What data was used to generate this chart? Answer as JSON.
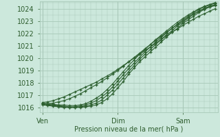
{
  "bg_color": "#cce8dc",
  "grid_color": "#a8c8b8",
  "line_color": "#2d6030",
  "marker_color": "#2d6030",
  "xlabel": "Pression niveau de la mer( hPa )",
  "xlabel_color": "#2d5c2d",
  "tick_color": "#2d5c2d",
  "ylim": [
    1015.6,
    1024.6
  ],
  "yticks": [
    1016,
    1017,
    1018,
    1019,
    1020,
    1021,
    1022,
    1023,
    1024
  ],
  "xtick_labels": [
    "Ven",
    "Dim",
    "Sam"
  ],
  "xtick_positions": [
    0,
    14,
    26
  ],
  "total_points": 33,
  "series": [
    [
      1016.2,
      1016.15,
      1016.1,
      1016.05,
      1016.0,
      1016.0,
      1016.0,
      1016.0,
      1016.05,
      1016.1,
      1016.2,
      1016.4,
      1016.7,
      1017.1,
      1017.6,
      1018.1,
      1018.7,
      1019.2,
      1019.7,
      1020.1,
      1020.5,
      1020.9,
      1021.3,
      1021.7,
      1022.1,
      1022.4,
      1022.8,
      1023.1,
      1023.4,
      1023.7,
      1023.95,
      1024.15,
      1024.3
    ],
    [
      1016.25,
      1016.2,
      1016.15,
      1016.1,
      1016.05,
      1016.0,
      1016.0,
      1016.05,
      1016.1,
      1016.2,
      1016.35,
      1016.6,
      1017.0,
      1017.4,
      1017.9,
      1018.4,
      1018.9,
      1019.4,
      1019.9,
      1020.3,
      1020.7,
      1021.1,
      1021.5,
      1021.9,
      1022.2,
      1022.6,
      1022.9,
      1023.25,
      1023.55,
      1023.8,
      1024.05,
      1024.2,
      1024.35
    ],
    [
      1016.3,
      1016.25,
      1016.2,
      1016.15,
      1016.1,
      1016.05,
      1016.05,
      1016.1,
      1016.2,
      1016.35,
      1016.55,
      1016.85,
      1017.2,
      1017.65,
      1018.15,
      1018.65,
      1019.15,
      1019.6,
      1020.05,
      1020.5,
      1020.9,
      1021.3,
      1021.65,
      1022.05,
      1022.4,
      1022.75,
      1023.1,
      1023.4,
      1023.65,
      1023.95,
      1024.15,
      1024.3,
      1024.45
    ],
    [
      1016.35,
      1016.3,
      1016.25,
      1016.2,
      1016.2,
      1016.15,
      1016.15,
      1016.2,
      1016.3,
      1016.5,
      1016.75,
      1017.05,
      1017.45,
      1017.9,
      1018.4,
      1018.9,
      1019.4,
      1019.85,
      1020.3,
      1020.7,
      1021.1,
      1021.5,
      1021.85,
      1022.2,
      1022.55,
      1022.9,
      1023.2,
      1023.5,
      1023.75,
      1024.0,
      1024.2,
      1024.35,
      1024.5
    ],
    [
      1016.3,
      1016.3,
      1016.35,
      1016.45,
      1016.55,
      1016.7,
      1016.9,
      1017.1,
      1017.35,
      1017.6,
      1017.85,
      1018.1,
      1018.4,
      1018.7,
      1019.0,
      1019.35,
      1019.7,
      1020.05,
      1020.4,
      1020.75,
      1021.1,
      1021.45,
      1021.75,
      1022.1,
      1022.4,
      1022.7,
      1023.0,
      1023.3,
      1023.55,
      1023.8,
      1024.0,
      1024.15,
      1024.25
    ],
    [
      1016.4,
      1016.45,
      1016.55,
      1016.7,
      1016.85,
      1017.05,
      1017.25,
      1017.45,
      1017.65,
      1017.85,
      1018.05,
      1018.3,
      1018.55,
      1018.8,
      1019.1,
      1019.4,
      1019.7,
      1020.0,
      1020.3,
      1020.6,
      1020.9,
      1021.2,
      1021.5,
      1021.8,
      1022.1,
      1022.35,
      1022.65,
      1022.9,
      1023.15,
      1023.4,
      1023.6,
      1023.8,
      1024.0
    ]
  ]
}
